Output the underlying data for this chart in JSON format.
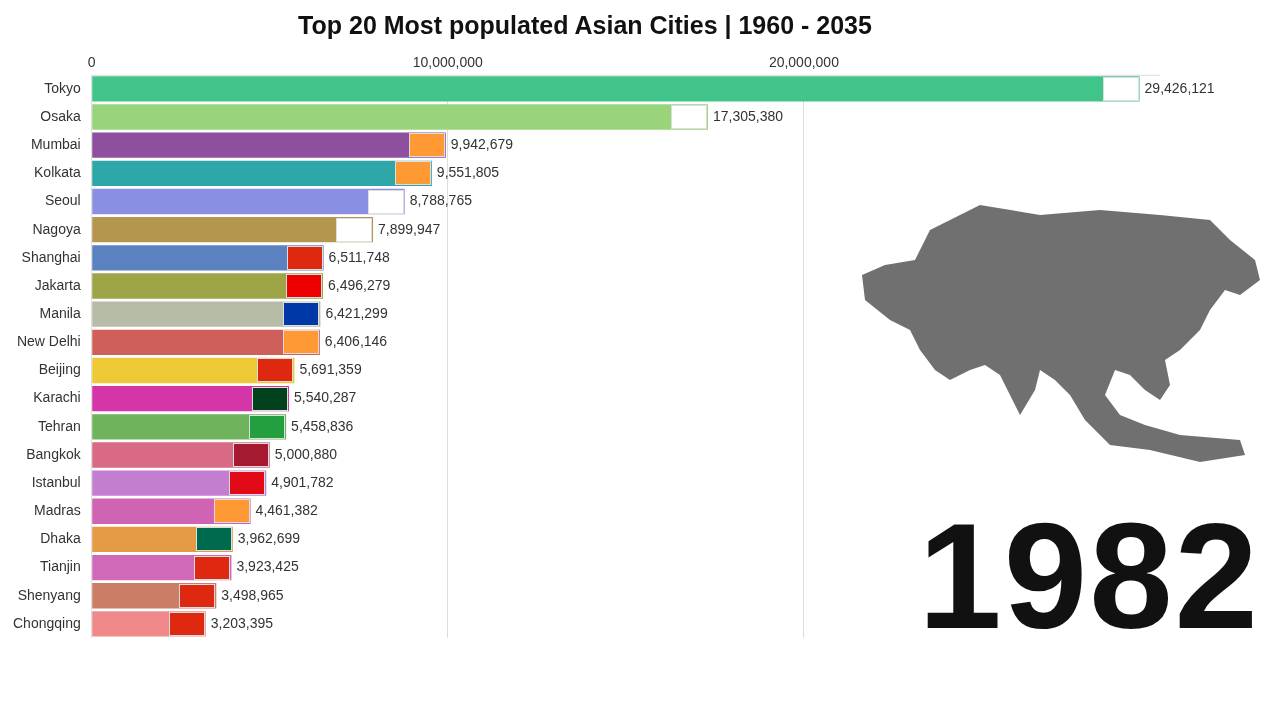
{
  "chart_data": {
    "type": "bar",
    "orientation": "horizontal",
    "title": "Top 20 Most populated Asian Cities | 1960 - 2035",
    "categories": [
      "Tokyo",
      "Osaka",
      "Mumbai",
      "Kolkata",
      "Seoul",
      "Nagoya",
      "Shanghai",
      "Jakarta",
      "Manila",
      "New Delhi",
      "Beijing",
      "Karachi",
      "Tehran",
      "Bangkok",
      "Istanbul",
      "Madras",
      "Dhaka",
      "Tianjin",
      "Shenyang",
      "Chongqing"
    ],
    "values": [
      29426121,
      17305380,
      9942679,
      9551805,
      8788765,
      7899947,
      6511748,
      6496279,
      6421299,
      6406146,
      5691359,
      5540287,
      5458836,
      5000880,
      4901782,
      4461382,
      3962699,
      3923425,
      3498965,
      3203395
    ],
    "colors": [
      "#40c48a",
      "#9ad47a",
      "#8e4f9e",
      "#2fa7a8",
      "#8b8fe3",
      "#b5964e",
      "#5b82c0",
      "#9da547",
      "#b7bca8",
      "#cf5f5a",
      "#eec837",
      "#d436a8",
      "#6fb35c",
      "#d86a86",
      "#c47ed0",
      "#d064b4",
      "#e59a45",
      "#d06ab8",
      "#cc7d66",
      "#f08a8a"
    ],
    "xlim": [
      0,
      30000000
    ],
    "xticks": [
      0,
      {
        "value": 10000000,
        "label": "10,000,000"
      },
      {
        "value": 20000000,
        "label": "20,000,000"
      }
    ],
    "value_labels": [
      "29,426,121",
      "17,305,380",
      "9,942,679",
      "9,551,805",
      "8,788,765",
      "7,899,947",
      "6,511,748",
      "6,496,279",
      "6,421,299",
      "6,406,146",
      "5,691,359",
      "5,540,287",
      "5,458,836",
      "5,000,880",
      "4,901,782",
      "4,461,382",
      "3,962,699",
      "3,923,425",
      "3,498,965",
      "3,203,395"
    ],
    "grid": "x",
    "legend": false,
    "annotations": [
      "1982"
    ]
  }
}
